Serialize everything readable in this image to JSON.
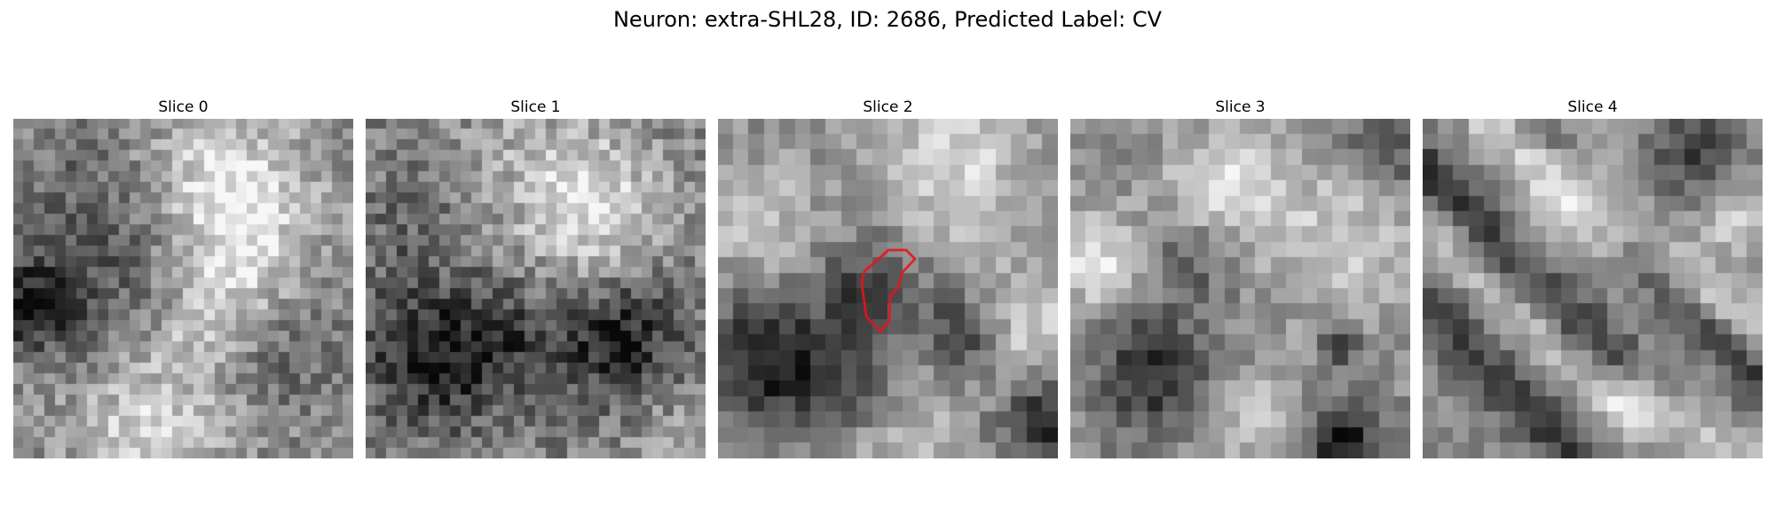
{
  "figure": {
    "title": "Neuron: extra-SHL28, ID: 2686, Predicted Label: CV"
  },
  "slices": [
    {
      "label": "Slice 0",
      "has_outline": false
    },
    {
      "label": "Slice 1",
      "has_outline": false
    },
    {
      "label": "Slice 2",
      "has_outline": true
    },
    {
      "label": "Slice 3",
      "has_outline": false
    },
    {
      "label": "Slice 4",
      "has_outline": false
    }
  ],
  "colors": {
    "outline": "#e8141b",
    "background": "#ffffff"
  },
  "image": {
    "colormap": "gray",
    "grid": 20
  }
}
